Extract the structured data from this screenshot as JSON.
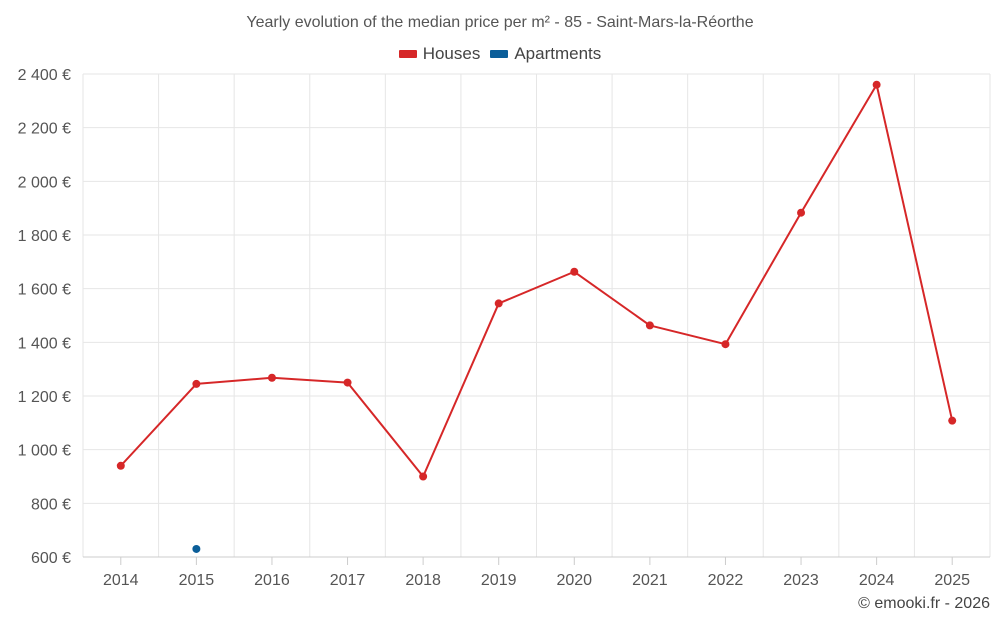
{
  "title": "Yearly evolution of the median price per m² - 85 - Saint-Mars-la-Réorthe",
  "copyright": "© emooki.fr - 2026",
  "chart_data": {
    "type": "line",
    "title": "Yearly evolution of the median price per m² - 85 - Saint-Mars-la-Réorthe",
    "xlabel": "",
    "ylabel": "",
    "categories": [
      "2014",
      "2015",
      "2016",
      "2017",
      "2018",
      "2019",
      "2020",
      "2021",
      "2022",
      "2023",
      "2024",
      "2025"
    ],
    "ylim": [
      600,
      2400
    ],
    "yticks": [
      600,
      800,
      1000,
      1200,
      1400,
      1600,
      1800,
      2000,
      2200,
      2400
    ],
    "ytick_labels": [
      "600 €",
      "800 €",
      "1 000 €",
      "1 200 €",
      "1 400 €",
      "1 600 €",
      "1 800 €",
      "2 000 €",
      "2 200 €",
      "2 400 €"
    ],
    "grid": true,
    "legend_position": "top-center",
    "series": [
      {
        "name": "Houses",
        "color": "#d62728",
        "values": [
          940,
          1245,
          1268,
          1250,
          900,
          1545,
          1663,
          1463,
          1393,
          1883,
          2360,
          1108
        ]
      },
      {
        "name": "Apartments",
        "color": "#0b5e99",
        "values": [
          null,
          630,
          null,
          null,
          null,
          null,
          null,
          null,
          null,
          null,
          null,
          null
        ]
      }
    ]
  }
}
